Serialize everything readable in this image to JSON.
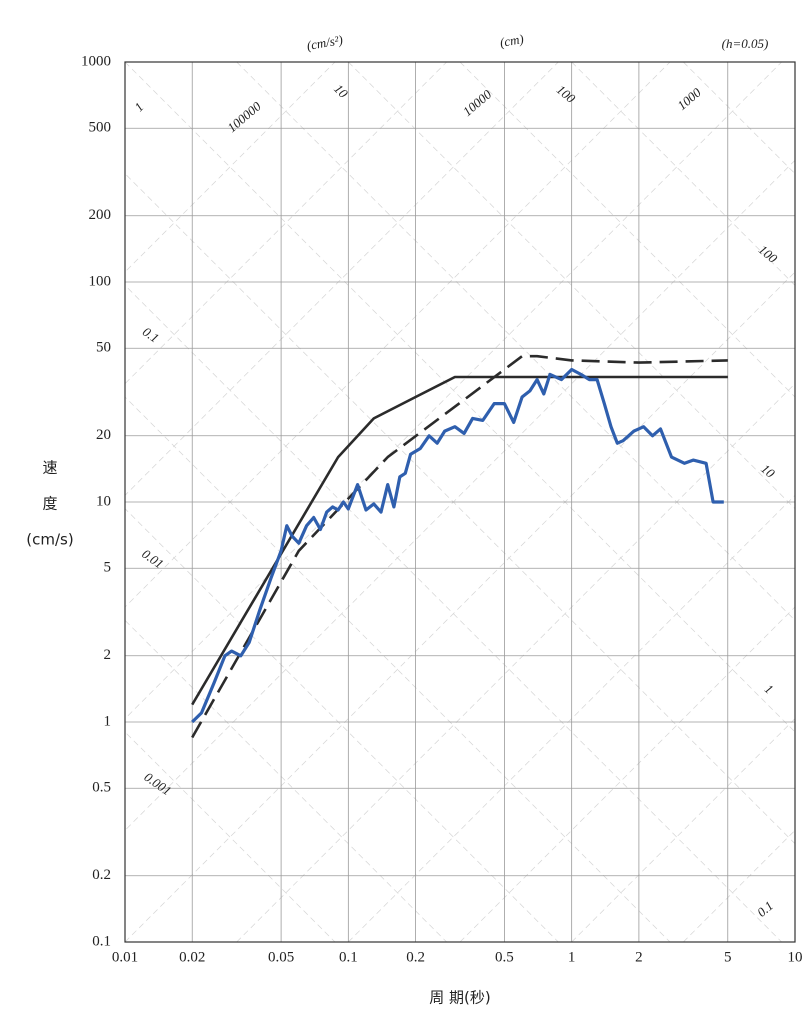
{
  "chart_data": {
    "type": "line",
    "xscale": "log",
    "yscale": "log",
    "grid": true,
    "x_label": "周 期(秒)",
    "y_label_lines": [
      "速",
      "度",
      "(cm/s)"
    ],
    "xlim": [
      0.01,
      10
    ],
    "xticks": [
      0.01,
      0.02,
      0.05,
      0.1,
      0.2,
      0.5,
      1,
      2,
      5,
      10
    ],
    "ylim": [
      0.1,
      1000
    ],
    "yticks": [
      0.1,
      0.2,
      0.5,
      1,
      2,
      5,
      10,
      20,
      50,
      100,
      200,
      500,
      1000
    ],
    "annotations": [
      "(cm/s²)",
      "(cm)",
      "(h=0.05)",
      "1",
      "100000",
      "10",
      "10000",
      "100",
      "1000",
      "0.1",
      "0.01",
      "0.001",
      "100",
      "10",
      "1",
      "0.1"
    ],
    "series": [
      {
        "color": "#2b2b2b",
        "dash": false,
        "x": [
          0.02,
          0.09,
          0.13,
          0.2,
          0.3,
          5
        ],
        "values": [
          1.2,
          16,
          24,
          30,
          37,
          37
        ]
      },
      {
        "color": "#2b2b2b",
        "dash": true,
        "x": [
          0.02,
          0.06,
          0.15,
          0.6,
          0.7,
          1,
          2,
          5
        ],
        "values": [
          0.85,
          6,
          16,
          46,
          46,
          44,
          43,
          44
        ]
      },
      {
        "color": "#2f5fae",
        "dash": false,
        "x": [
          0.02,
          0.022,
          0.025,
          0.028,
          0.03,
          0.033,
          0.036,
          0.04,
          0.045,
          0.05,
          0.053,
          0.056,
          0.06,
          0.065,
          0.07,
          0.075,
          0.08,
          0.085,
          0.09,
          0.095,
          0.1,
          0.11,
          0.12,
          0.13,
          0.14,
          0.15,
          0.16,
          0.17,
          0.18,
          0.19,
          0.21,
          0.23,
          0.25,
          0.27,
          0.3,
          0.33,
          0.36,
          0.4,
          0.45,
          0.5,
          0.55,
          0.6,
          0.65,
          0.7,
          0.75,
          0.8,
          0.9,
          1.0,
          1.1,
          1.2,
          1.3,
          1.4,
          1.5,
          1.6,
          1.7,
          1.9,
          2.1,
          2.3,
          2.5,
          2.8,
          3.2,
          3.5,
          4.0,
          4.3,
          4.8
        ],
        "values": [
          1.0,
          1.1,
          1.5,
          2.0,
          2.1,
          2.0,
          2.3,
          3.2,
          4.5,
          6.0,
          7.8,
          7.0,
          6.5,
          7.8,
          8.5,
          7.5,
          9.0,
          9.5,
          9.2,
          10.0,
          9.3,
          12.0,
          9.2,
          9.8,
          9.0,
          12.0,
          9.5,
          13.0,
          13.5,
          16.5,
          17.5,
          20.0,
          18.5,
          21.0,
          22.0,
          20.5,
          24.0,
          23.5,
          28.0,
          28.0,
          23.0,
          30.0,
          32.0,
          36.0,
          31.0,
          38.0,
          36.0,
          40.0,
          38.0,
          36.0,
          36.0,
          28.0,
          22.0,
          18.5,
          19.0,
          21.0,
          22.0,
          20.0,
          21.5,
          16.0,
          15.0,
          15.5,
          15.0,
          10.0,
          10.0
        ]
      }
    ]
  }
}
